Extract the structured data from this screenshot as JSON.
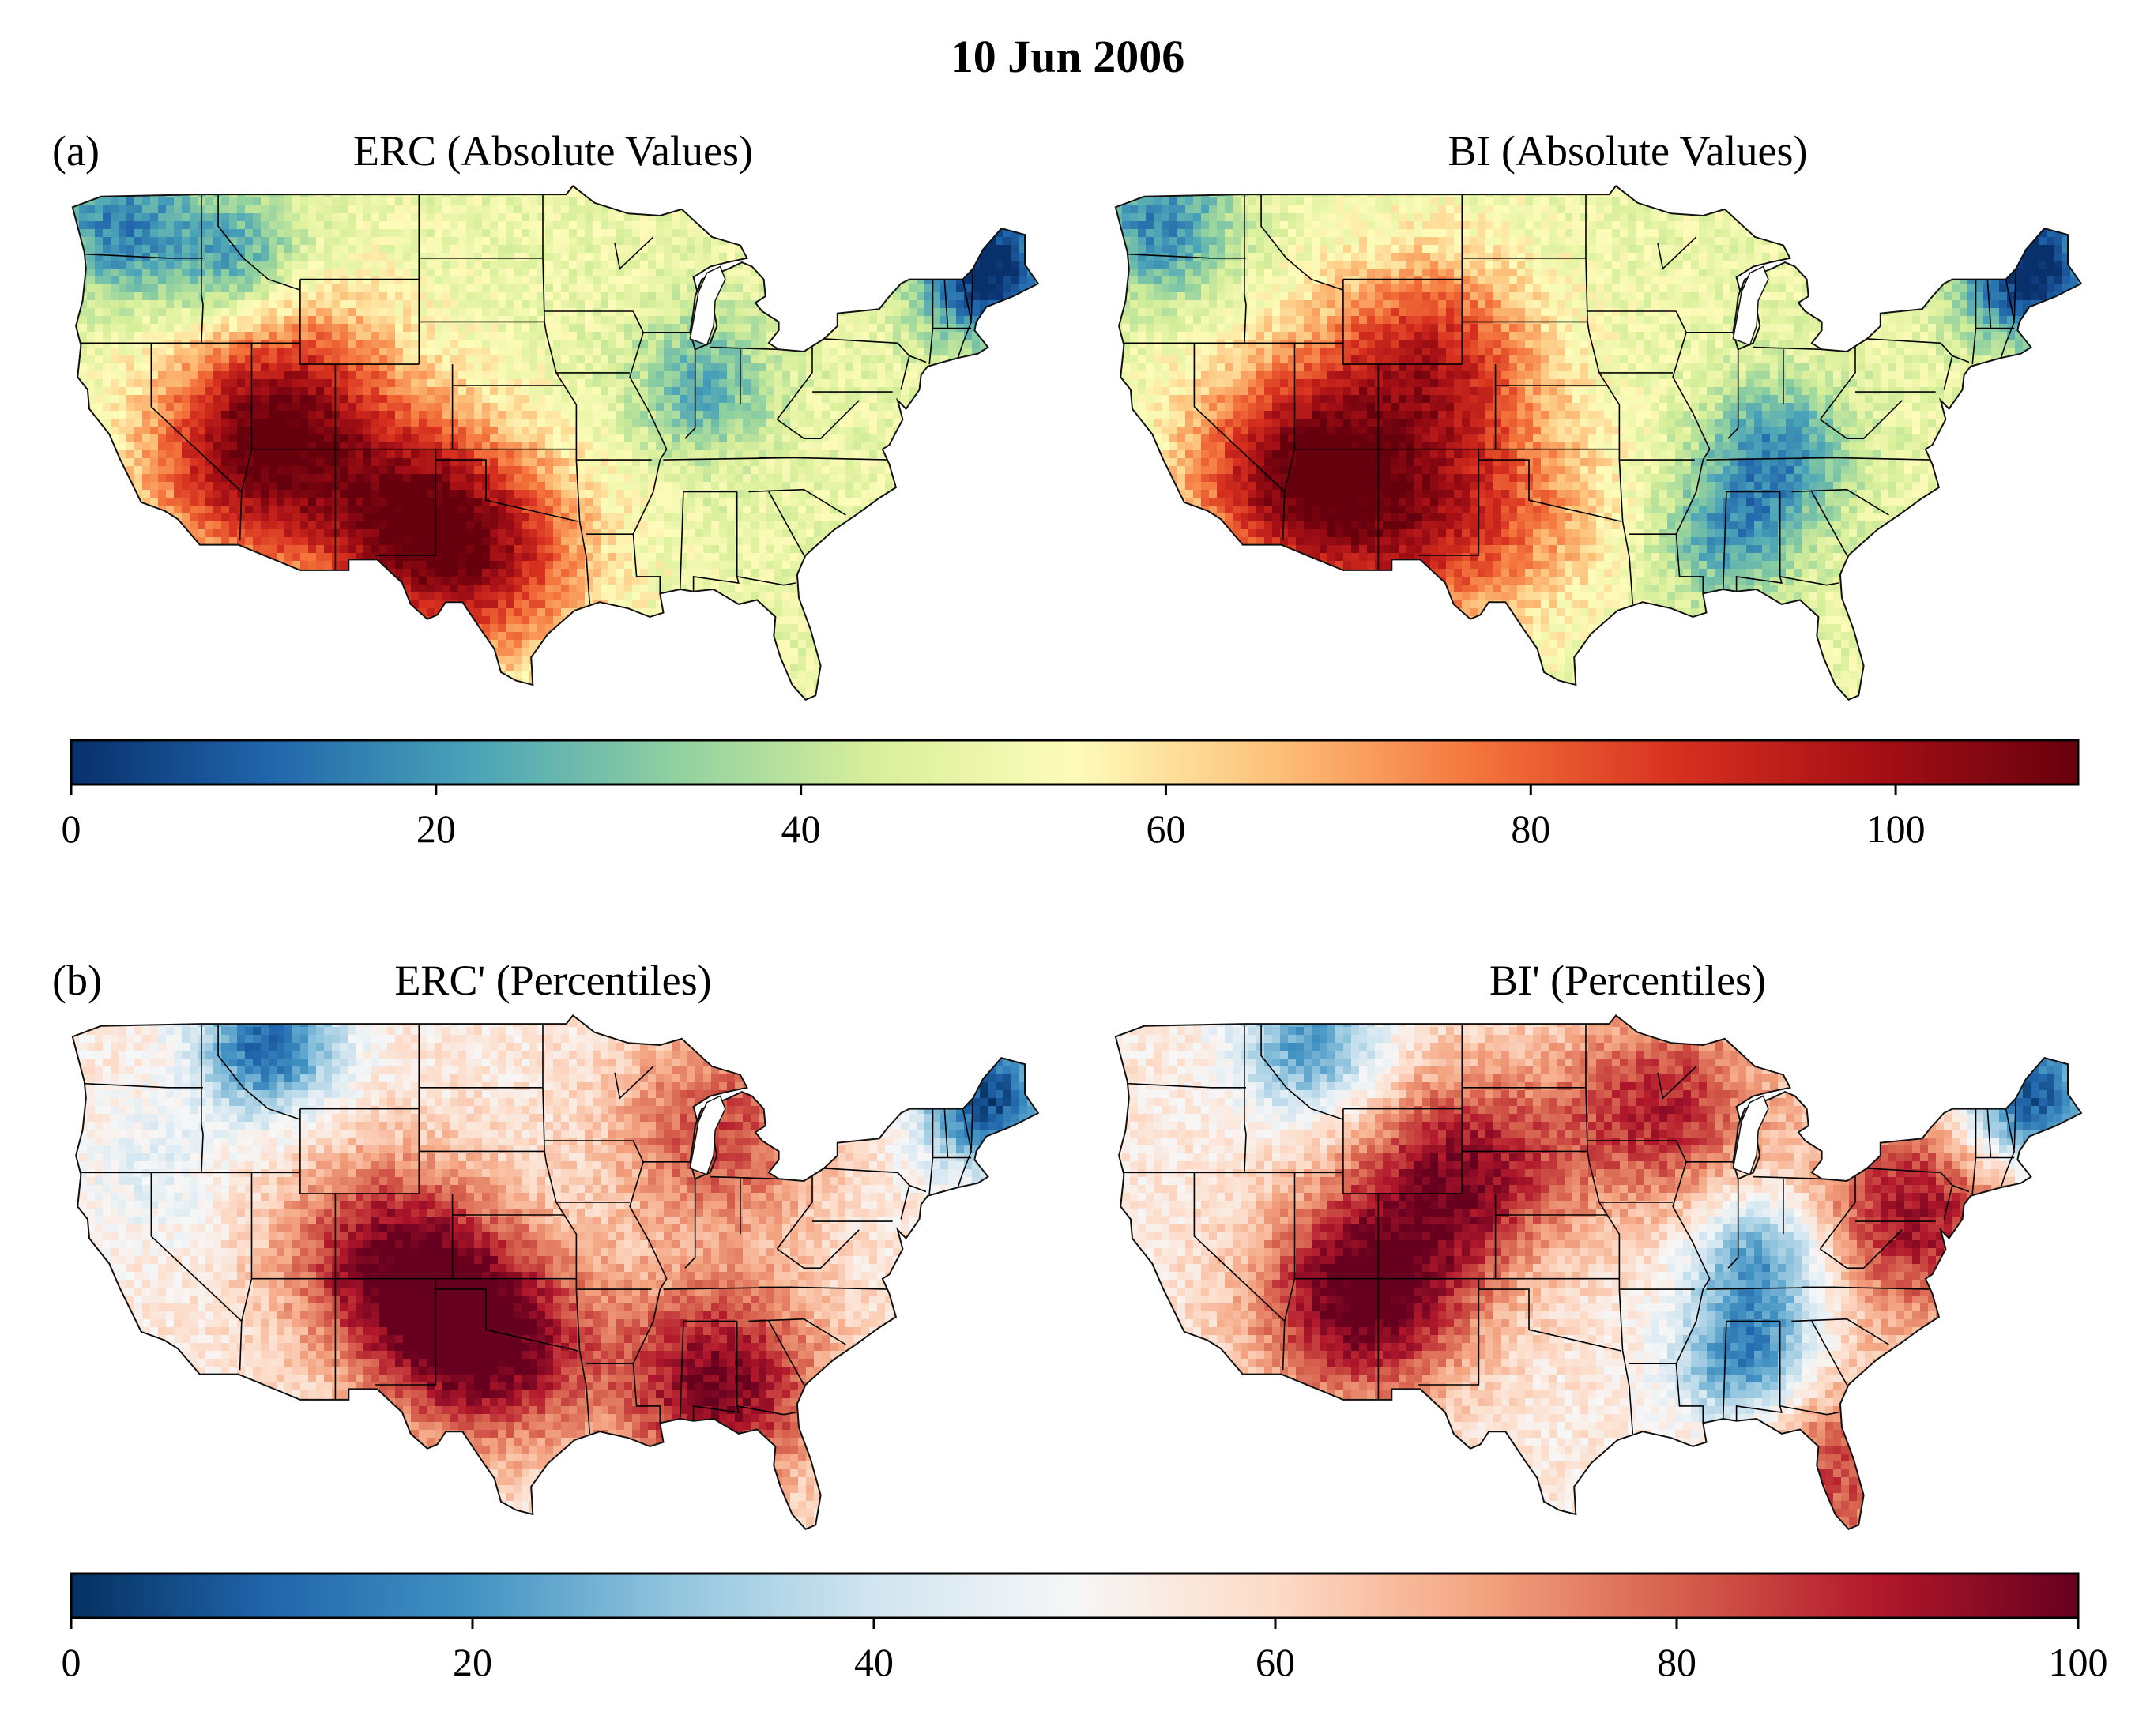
{
  "figure": {
    "title": "10 Jun 2006"
  },
  "row_a": {
    "letter": "(a)",
    "left_title": "ERC (Absolute Values)",
    "right_title": "BI (Absolute Values)",
    "colorbar": {
      "range": [
        0,
        110
      ],
      "ticks": [
        "0",
        "20",
        "40",
        "60",
        "80",
        "100"
      ],
      "tick_values": [
        0,
        20,
        40,
        60,
        80,
        100
      ],
      "colors": [
        "#08306b",
        "#2166ac",
        "#4aa3b8",
        "#8fd0a0",
        "#d8ef9a",
        "#fefcba",
        "#fdc07a",
        "#f4743c",
        "#d7301f",
        "#a50f15",
        "#67000d"
      ]
    }
  },
  "row_b": {
    "letter": "(b)",
    "left_title": "ERC' (Percentiles)",
    "right_title": "BI' (Percentiles)",
    "colorbar": {
      "range": [
        0,
        100
      ],
      "ticks": [
        "0",
        "20",
        "40",
        "60",
        "80",
        "100"
      ],
      "tick_values": [
        0,
        20,
        40,
        60,
        80,
        100
      ],
      "colors": [
        "#053061",
        "#2166ac",
        "#4393c3",
        "#92c5de",
        "#d1e5f0",
        "#f7f7f7",
        "#fddbc7",
        "#f4a582",
        "#d6604d",
        "#b2182b",
        "#67001f"
      ]
    }
  },
  "maps": {
    "erc_abs": {
      "palette": "abs",
      "hot": [
        [
          -104,
          33.5,
          1.0
        ],
        [
          -114,
          36.5,
          0.9
        ],
        [
          -111,
          40,
          0.5
        ],
        [
          -99,
          31.5,
          0.5
        ]
      ],
      "cool": [
        [
          -70,
          45.5,
          1.0
        ],
        [
          -122,
          47.5,
          0.6
        ],
        [
          -115,
          46,
          0.5
        ],
        [
          -87,
          40,
          0.45
        ]
      ],
      "base": 0.45
    },
    "bi_abs": {
      "palette": "abs",
      "hot": [
        [
          -114,
          36,
          1.0
        ],
        [
          -106,
          41,
          0.8
        ],
        [
          -108,
          33,
          0.6
        ],
        [
          -101,
          34,
          0.4
        ]
      ],
      "cool": [
        [
          -70,
          45.5,
          1.0
        ],
        [
          -122,
          47.5,
          0.6
        ],
        [
          -85,
          37,
          0.55
        ],
        [
          -88,
          33,
          0.5
        ]
      ],
      "base": 0.45
    },
    "erc_pct": {
      "palette": "pct",
      "hot": [
        [
          -100,
          34,
          1.0
        ],
        [
          -86,
          32,
          0.9
        ],
        [
          -106,
          38,
          0.8
        ],
        [
          -86,
          44,
          0.6
        ]
      ],
      "cool": [
        [
          -70,
          45.5,
          1.0
        ],
        [
          -113,
          48,
          0.9
        ],
        [
          -120,
          42,
          0.2
        ]
      ],
      "base": 0.55
    },
    "bi_pct": {
      "palette": "pct",
      "hot": [
        [
          -110,
          36,
          1.0
        ],
        [
          -104,
          42,
          0.8
        ],
        [
          -92,
          45,
          0.7
        ],
        [
          -77,
          40,
          0.8
        ],
        [
          -82,
          28,
          0.6
        ]
      ],
      "cool": [
        [
          -70,
          45.5,
          1.0
        ],
        [
          -87,
          33,
          0.8
        ],
        [
          -86,
          38,
          0.7
        ],
        [
          -113,
          48,
          0.7
        ]
      ],
      "base": 0.55
    }
  }
}
